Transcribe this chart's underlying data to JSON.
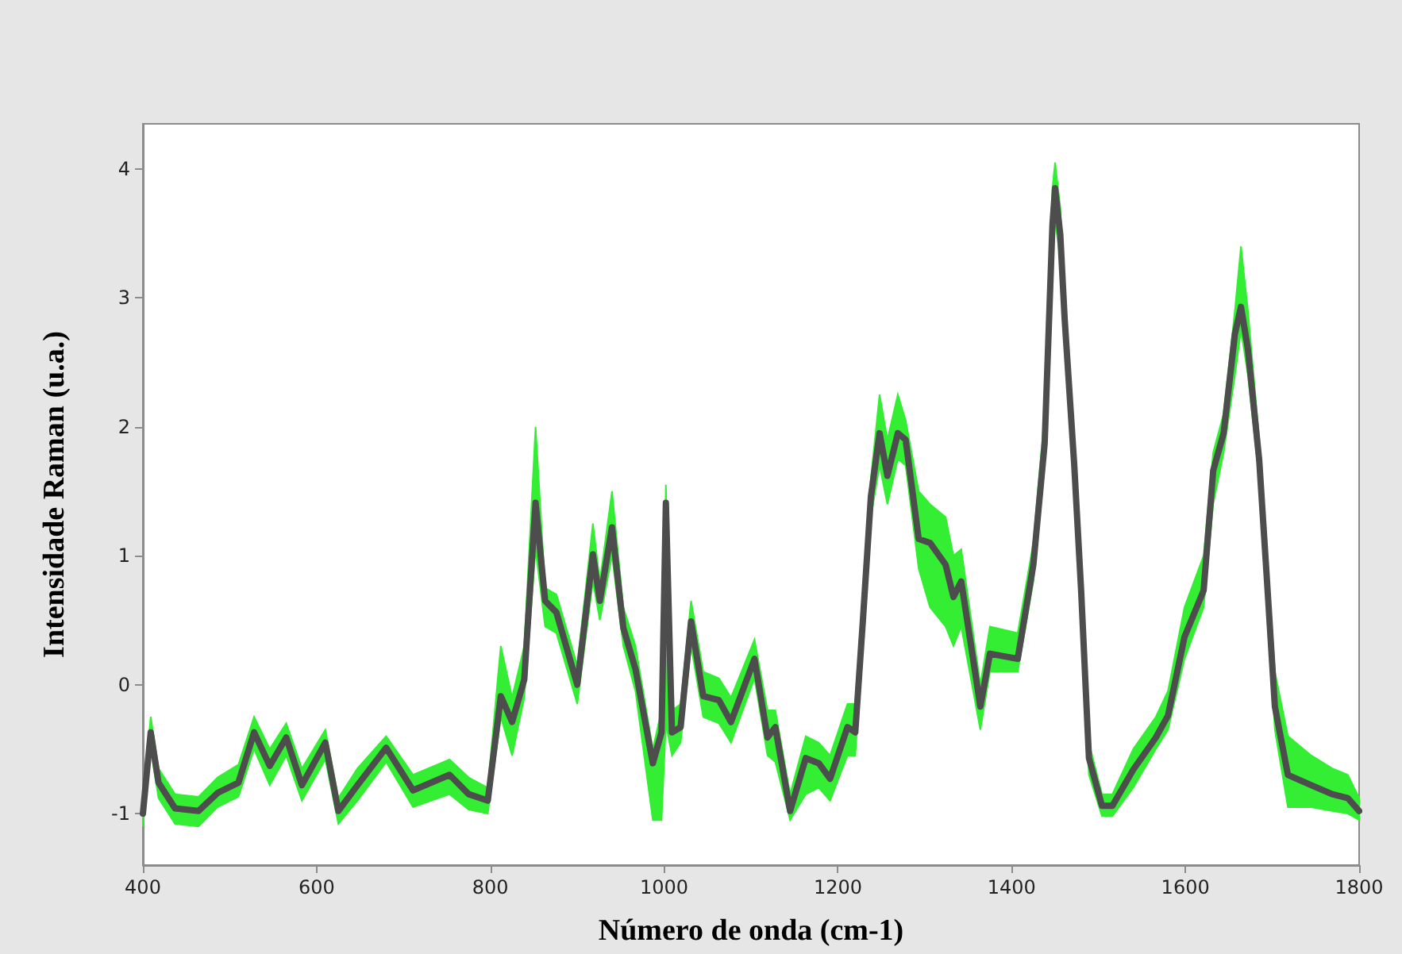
{
  "chart_data": {
    "type": "line",
    "xlabel": "Número de onda (cm-1)",
    "ylabel": "Intensidade Raman (u.a.)",
    "xlim": [
      400,
      1800
    ],
    "xticks": [
      400,
      600,
      800,
      1000,
      1200,
      1400,
      1600,
      1800
    ],
    "ylim": [
      -1.4,
      4.35
    ],
    "yticks": [
      -1,
      0,
      1,
      2,
      3,
      4
    ],
    "grid": false,
    "marker": "none",
    "line_style": "solid",
    "x": [
      400,
      409,
      418,
      437,
      464,
      486,
      510,
      528,
      546,
      565,
      583,
      610,
      625,
      647,
      680,
      711,
      753,
      775,
      797,
      812,
      825,
      839,
      852,
      863,
      876,
      900,
      918,
      926,
      940,
      953,
      967,
      987,
      997,
      1002,
      1009,
      1019,
      1031,
      1045,
      1063,
      1077,
      1104,
      1119,
      1128,
      1145,
      1163,
      1178,
      1191,
      1211,
      1220,
      1229,
      1238,
      1248,
      1257,
      1269,
      1278,
      1293,
      1306,
      1324,
      1333,
      1342,
      1364,
      1375,
      1407,
      1425,
      1438,
      1447,
      1450,
      1456,
      1461,
      1472,
      1480,
      1489,
      1504,
      1516,
      1540,
      1566,
      1580,
      1599,
      1621,
      1632,
      1644,
      1657,
      1664,
      1672,
      1685,
      1694,
      1703,
      1718,
      1745,
      1769,
      1787,
      1800
    ],
    "series": [
      {
        "color": "#4d4d4d",
        "values": [
          -1.0,
          -0.37,
          -0.76,
          -0.96,
          -0.98,
          -0.84,
          -0.76,
          -0.37,
          -0.63,
          -0.41,
          -0.78,
          -0.45,
          -0.98,
          -0.78,
          -0.49,
          -0.82,
          -0.7,
          -0.85,
          -0.9,
          -0.09,
          -0.29,
          0.04,
          1.41,
          0.65,
          0.56,
          0.0,
          1.01,
          0.65,
          1.22,
          0.44,
          0.12,
          -0.61,
          -0.37,
          1.41,
          -0.37,
          -0.33,
          0.49,
          -0.09,
          -0.12,
          -0.29,
          0.2,
          -0.41,
          -0.33,
          -0.98,
          -0.57,
          -0.61,
          -0.73,
          -0.33,
          -0.37,
          0.52,
          1.46,
          1.95,
          1.62,
          1.95,
          1.9,
          1.13,
          1.1,
          0.93,
          0.68,
          0.8,
          -0.17,
          0.24,
          0.2,
          0.93,
          1.87,
          3.57,
          3.85,
          3.49,
          2.84,
          1.71,
          0.73,
          -0.57,
          -0.94,
          -0.94,
          -0.66,
          -0.41,
          -0.24,
          0.37,
          0.73,
          1.66,
          1.95,
          2.72,
          2.93,
          2.6,
          1.74,
          0.8,
          -0.17,
          -0.7,
          -0.78,
          -0.85,
          -0.88,
          -0.98
        ],
        "lower": [
          -1.1,
          -0.5,
          -0.88,
          -1.08,
          -1.1,
          -0.95,
          -0.87,
          -0.5,
          -0.78,
          -0.55,
          -0.9,
          -0.58,
          -1.08,
          -0.9,
          -0.6,
          -0.95,
          -0.85,
          -0.97,
          -1.0,
          -0.25,
          -0.55,
          -0.1,
          1.05,
          0.45,
          0.4,
          -0.15,
          0.8,
          0.5,
          1.0,
          0.3,
          -0.05,
          -1.05,
          -1.05,
          -0.3,
          -0.55,
          -0.45,
          0.3,
          -0.25,
          -0.3,
          -0.45,
          0.05,
          -0.55,
          -0.6,
          -1.05,
          -0.85,
          -0.8,
          -0.9,
          -0.55,
          -0.55,
          0.35,
          1.3,
          1.7,
          1.4,
          1.75,
          1.7,
          0.9,
          0.6,
          0.45,
          0.3,
          0.45,
          -0.35,
          0.1,
          0.1,
          0.8,
          1.7,
          3.4,
          3.6,
          3.3,
          2.7,
          1.6,
          0.6,
          -0.7,
          -1.02,
          -1.02,
          -0.8,
          -0.5,
          -0.35,
          0.2,
          0.6,
          1.4,
          1.8,
          2.4,
          2.75,
          2.4,
          1.6,
          0.65,
          -0.35,
          -0.95,
          -0.95,
          -0.98,
          -1.0,
          -1.05
        ],
        "upper": [
          -0.9,
          -0.25,
          -0.65,
          -0.85,
          -0.87,
          -0.72,
          -0.62,
          -0.25,
          -0.5,
          -0.3,
          -0.65,
          -0.35,
          -0.88,
          -0.65,
          -0.4,
          -0.7,
          -0.58,
          -0.72,
          -0.8,
          0.3,
          -0.1,
          0.3,
          2.0,
          0.75,
          0.7,
          0.15,
          1.25,
          0.8,
          1.5,
          0.6,
          0.3,
          -0.5,
          -0.2,
          1.55,
          -0.2,
          -0.15,
          0.65,
          0.1,
          0.05,
          -0.1,
          0.35,
          -0.2,
          -0.2,
          -0.85,
          -0.4,
          -0.45,
          -0.55,
          -0.15,
          -0.15,
          0.7,
          1.6,
          2.25,
          1.9,
          2.25,
          2.05,
          1.5,
          1.4,
          1.3,
          1.0,
          1.05,
          0.0,
          0.45,
          0.4,
          1.1,
          2.1,
          3.85,
          4.05,
          3.7,
          3.0,
          1.85,
          0.85,
          -0.45,
          -0.85,
          -0.85,
          -0.5,
          -0.25,
          -0.05,
          0.6,
          1.0,
          1.8,
          2.1,
          2.9,
          3.4,
          2.9,
          1.9,
          0.95,
          0.1,
          -0.4,
          -0.55,
          -0.65,
          -0.7,
          -0.88
        ]
      }
    ]
  }
}
